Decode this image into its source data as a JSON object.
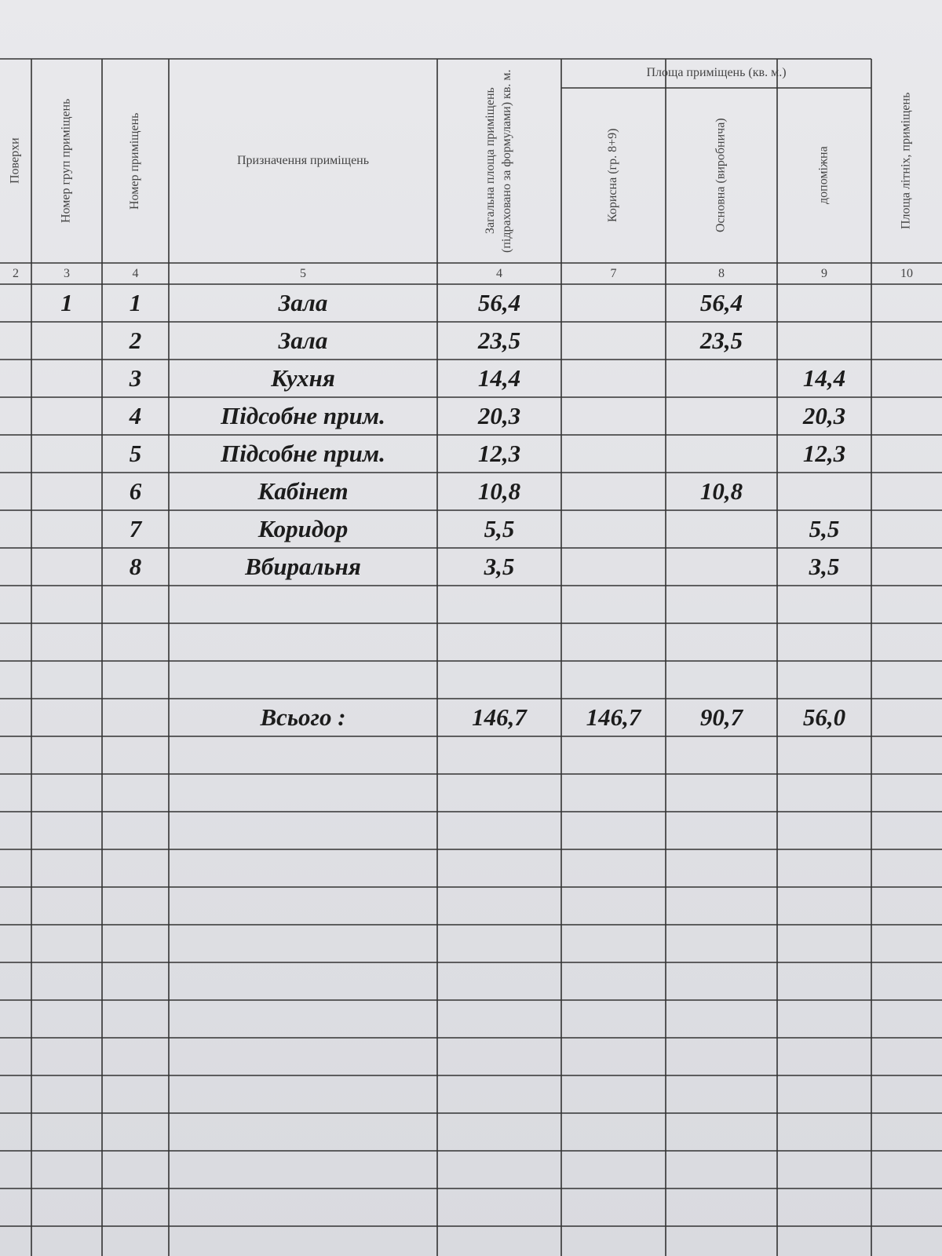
{
  "header": {
    "group_title": "Площа приміщень (кв. м.)",
    "columns": [
      {
        "label": "Поверхи",
        "number": "2"
      },
      {
        "label": "Номер груп приміщень",
        "number": "3"
      },
      {
        "label": "Номер приміщень",
        "number": "4"
      },
      {
        "label": "Призначення приміщень",
        "number": "5"
      },
      {
        "label": "Загальна площа приміщень (підраховано за формулами) кв. м.",
        "number": "4"
      },
      {
        "label": "Корисна (гр. 8+9)",
        "number": "7"
      },
      {
        "label": "Основна (виробнича)",
        "number": "8"
      },
      {
        "label": "допоміжна",
        "number": "9"
      },
      {
        "label": "Площа літніх, приміщень",
        "number": "10"
      }
    ]
  },
  "rows": [
    [
      "1",
      "1",
      "Зала",
      "56,4",
      null,
      "56,4",
      null
    ],
    [
      null,
      "2",
      "Зала",
      "23,5",
      null,
      "23,5",
      null
    ],
    [
      null,
      "3",
      "Кухня",
      "14,4",
      null,
      null,
      "14,4"
    ],
    [
      null,
      "4",
      "Підсобне прим.",
      "20,3",
      null,
      null,
      "20,3"
    ],
    [
      null,
      "5",
      "Підсобне прим.",
      "12,3",
      null,
      null,
      "12,3"
    ],
    [
      null,
      "6",
      "Кабінет",
      "10,8",
      null,
      "10,8",
      null
    ],
    [
      null,
      "7",
      "Коридор",
      "5,5",
      null,
      null,
      "5,5"
    ],
    [
      null,
      "8",
      "Вбиральня",
      "3,5",
      null,
      null,
      "3,5"
    ]
  ],
  "total": {
    "label": "Всього :",
    "values": [
      "146,7",
      "146,7",
      "90,7",
      "56,0"
    ]
  }
}
